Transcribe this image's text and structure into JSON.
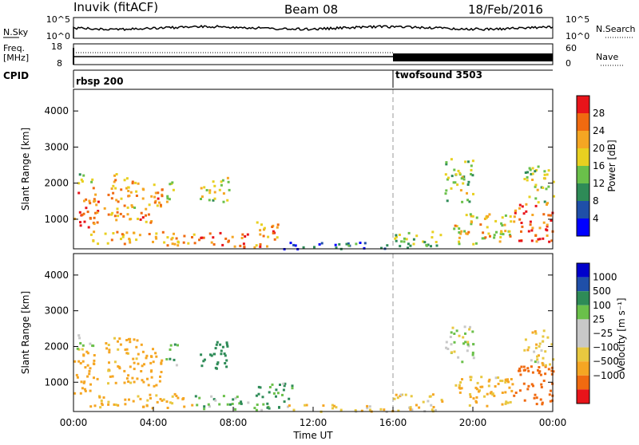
{
  "header": {
    "station": "Inuvik (fitACF)",
    "beam": "Beam 08",
    "date": "18/Feb/2016"
  },
  "top_strips": {
    "nsky_label": "N.Sky",
    "nsearch_label": "N.Search",
    "nsky_left_ticks": [
      "10^5",
      "10^0"
    ],
    "nsky_right_ticks": [
      "10^5",
      "10^0"
    ],
    "freq_label_1": "Freq.",
    "freq_label_2": "[MHz]",
    "freq_left_ticks": [
      "18",
      "8"
    ],
    "freq_right_ticks": [
      "60",
      "0"
    ],
    "nave_label": "Nave",
    "cpid_label": "CPID",
    "cpid_segments": [
      {
        "name": "rbsp 200",
        "start_hour": 0,
        "end_hour": 16
      },
      {
        "name": "twofsound 3503",
        "start_hour": 16,
        "end_hour": 24
      }
    ]
  },
  "colors": {
    "power_scale": [
      "#0000ff",
      "#1f4fa8",
      "#2e8b57",
      "#6ac04a",
      "#e8d020",
      "#f5a623",
      "#f06a10",
      "#e8141a"
    ],
    "velocity_scale": [
      "#e8141a",
      "#f06a10",
      "#f5a623",
      "#e8c840",
      "#c8c8c8",
      "#c8c8c8",
      "#6ac04a",
      "#2e8b57",
      "#1f4fa8",
      "#0000cc"
    ]
  },
  "chart_data": [
    {
      "type": "heatmap",
      "panel": "power",
      "ylabel": "Slant Range [km]",
      "xlabel": "",
      "x_ticks": [
        "00:00",
        "04:00",
        "08:00",
        "12:00",
        "16:00",
        "20:00",
        "00:00"
      ],
      "y_ticks": [
        "1000",
        "2000",
        "3000",
        "4000"
      ],
      "xlim_hours": [
        0,
        24
      ],
      "ylim_km": [
        180,
        4600
      ],
      "colorbar_label": "Power [dB]",
      "colorbar_ticks": [
        "4",
        "8",
        "12",
        "16",
        "20",
        "24",
        "28"
      ],
      "colorbar_range": [
        0,
        32
      ],
      "regions": [
        {
          "t0": 0.0,
          "t1": 1.2,
          "r0": 700,
          "r1": 1900,
          "v": 26
        },
        {
          "t0": 0.2,
          "t1": 1.0,
          "r0": 1900,
          "r1": 2300,
          "v": 16
        },
        {
          "t0": 1.5,
          "t1": 3.2,
          "r0": 1000,
          "r1": 2300,
          "v": 21
        },
        {
          "t0": 3.3,
          "t1": 4.4,
          "r0": 900,
          "r1": 2100,
          "v": 23
        },
        {
          "t0": 4.6,
          "t1": 5.2,
          "r0": 1500,
          "r1": 2100,
          "v": 18
        },
        {
          "t0": 6.3,
          "t1": 7.8,
          "r0": 1500,
          "r1": 2200,
          "v": 17
        },
        {
          "t0": 0.8,
          "t1": 6.0,
          "r0": 300,
          "r1": 700,
          "v": 22
        },
        {
          "t0": 6.0,
          "t1": 8.7,
          "r0": 250,
          "r1": 650,
          "v": 25
        },
        {
          "t0": 9.0,
          "t1": 10.3,
          "r0": 250,
          "r1": 1000,
          "v": 23
        },
        {
          "t0": 10.5,
          "t1": 16.0,
          "r0": 200,
          "r1": 400,
          "v": 8
        },
        {
          "t0": 16.0,
          "t1": 18.5,
          "r0": 200,
          "r1": 700,
          "v": 14
        },
        {
          "t0": 18.5,
          "t1": 20.0,
          "r0": 1500,
          "r1": 2700,
          "v": 15
        },
        {
          "t0": 19.0,
          "t1": 22.0,
          "r0": 300,
          "r1": 1200,
          "v": 19
        },
        {
          "t0": 22.0,
          "t1": 24.0,
          "r0": 400,
          "r1": 1500,
          "v": 27
        },
        {
          "t0": 22.5,
          "t1": 24.0,
          "r0": 1500,
          "r1": 2500,
          "v": 16
        }
      ]
    },
    {
      "type": "heatmap",
      "panel": "velocity",
      "ylabel": "Slant Range [km]",
      "xlabel": "Time UT",
      "x_ticks": [
        "00:00",
        "04:00",
        "08:00",
        "12:00",
        "16:00",
        "20:00",
        "00:00"
      ],
      "y_ticks": [
        "1000",
        "2000",
        "3000",
        "4000"
      ],
      "xlim_hours": [
        0,
        24
      ],
      "ylim_km": [
        180,
        4600
      ],
      "colorbar_label": "Velocity [m s⁻¹]",
      "colorbar_ticks": [
        "1000",
        "500",
        "100",
        "25",
        "−25",
        "−100",
        "−500",
        "−1000"
      ],
      "regions": [
        {
          "t0": 0.0,
          "t1": 1.2,
          "r0": 700,
          "r1": 1900,
          "v": -300
        },
        {
          "t0": 0.1,
          "t1": 1.0,
          "r0": 1900,
          "r1": 2400,
          "v": 0
        },
        {
          "t0": 1.5,
          "t1": 3.2,
          "r0": 1000,
          "r1": 2300,
          "v": -150
        },
        {
          "t0": 3.3,
          "t1": 4.4,
          "r0": 900,
          "r1": 2100,
          "v": -200
        },
        {
          "t0": 4.6,
          "t1": 5.2,
          "r0": 1500,
          "r1": 2100,
          "v": 80
        },
        {
          "t0": 6.3,
          "t1": 7.8,
          "r0": 1400,
          "r1": 2200,
          "v": 400
        },
        {
          "t0": 0.8,
          "t1": 6.0,
          "r0": 300,
          "r1": 700,
          "v": -120
        },
        {
          "t0": 6.0,
          "t1": 8.7,
          "r0": 250,
          "r1": 650,
          "v": 60
        },
        {
          "t0": 9.0,
          "t1": 11.0,
          "r0": 250,
          "r1": 1000,
          "v": 90
        },
        {
          "t0": 10.5,
          "t1": 16.0,
          "r0": 200,
          "r1": 400,
          "v": -60
        },
        {
          "t0": 16.0,
          "t1": 18.5,
          "r0": 200,
          "r1": 700,
          "v": -80
        },
        {
          "t0": 18.5,
          "t1": 20.0,
          "r0": 1600,
          "r1": 2600,
          "v": 0
        },
        {
          "t0": 19.0,
          "t1": 22.0,
          "r0": 300,
          "r1": 1200,
          "v": -100
        },
        {
          "t0": 22.0,
          "t1": 24.0,
          "r0": 400,
          "r1": 1500,
          "v": -700
        },
        {
          "t0": 22.5,
          "t1": 24.0,
          "r0": 1500,
          "r1": 2500,
          "v": -50
        }
      ]
    }
  ]
}
